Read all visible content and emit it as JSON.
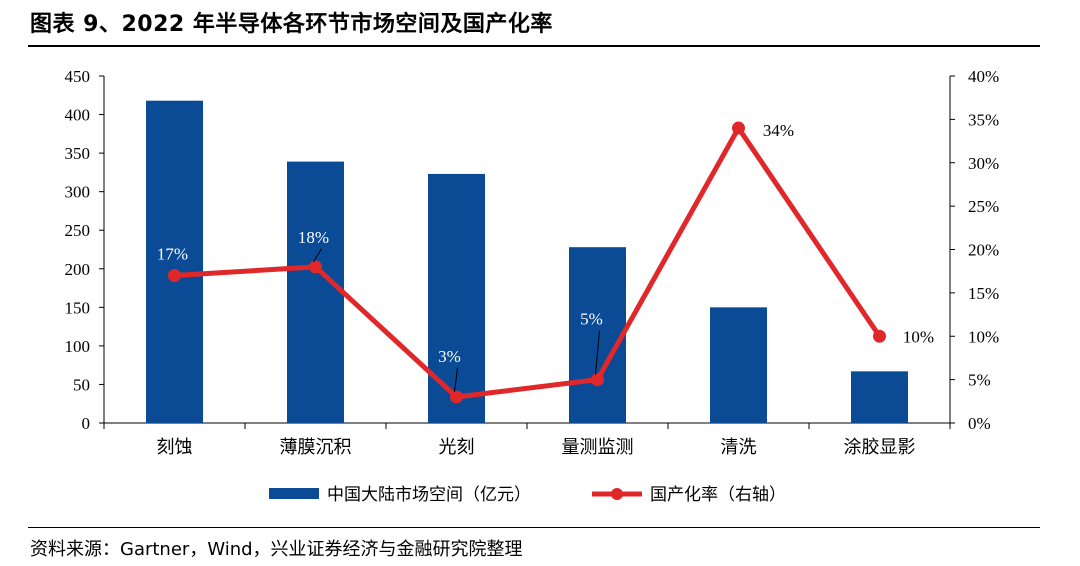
{
  "title": "图表 9、2022 年半导体各环节市场空间及国产化率",
  "source": "资料来源：Gartner，Wind，兴业证券经济与金融研究院整理",
  "chart_data": {
    "type": "bar",
    "categories": [
      "刻蚀",
      "薄膜沉积",
      "光刻",
      "量测监测",
      "清洗",
      "涂胶显影"
    ],
    "series": [
      {
        "name": "中国大陆市场空间（亿元）",
        "type": "bar",
        "axis": "left",
        "values": [
          418,
          339,
          323,
          228,
          150,
          67
        ],
        "color": "#0b4a94"
      },
      {
        "name": "国产化率（右轴）",
        "type": "line",
        "axis": "right",
        "values": [
          17,
          18,
          3,
          5,
          34,
          10
        ],
        "labels": [
          "17%",
          "18%",
          "3%",
          "5%",
          "34%",
          "10%"
        ],
        "color": "#e0282a"
      }
    ],
    "y_left": {
      "min": 0,
      "max": 450,
      "step": 50,
      "ticks": [
        "0",
        "50",
        "100",
        "150",
        "200",
        "250",
        "300",
        "350",
        "400",
        "450"
      ]
    },
    "y_right": {
      "min": 0,
      "max": 40,
      "step": 5,
      "ticks": [
        "0%",
        "5%",
        "10%",
        "15%",
        "20%",
        "25%",
        "30%",
        "35%",
        "40%"
      ]
    },
    "legend_position": "bottom",
    "grid": false
  }
}
